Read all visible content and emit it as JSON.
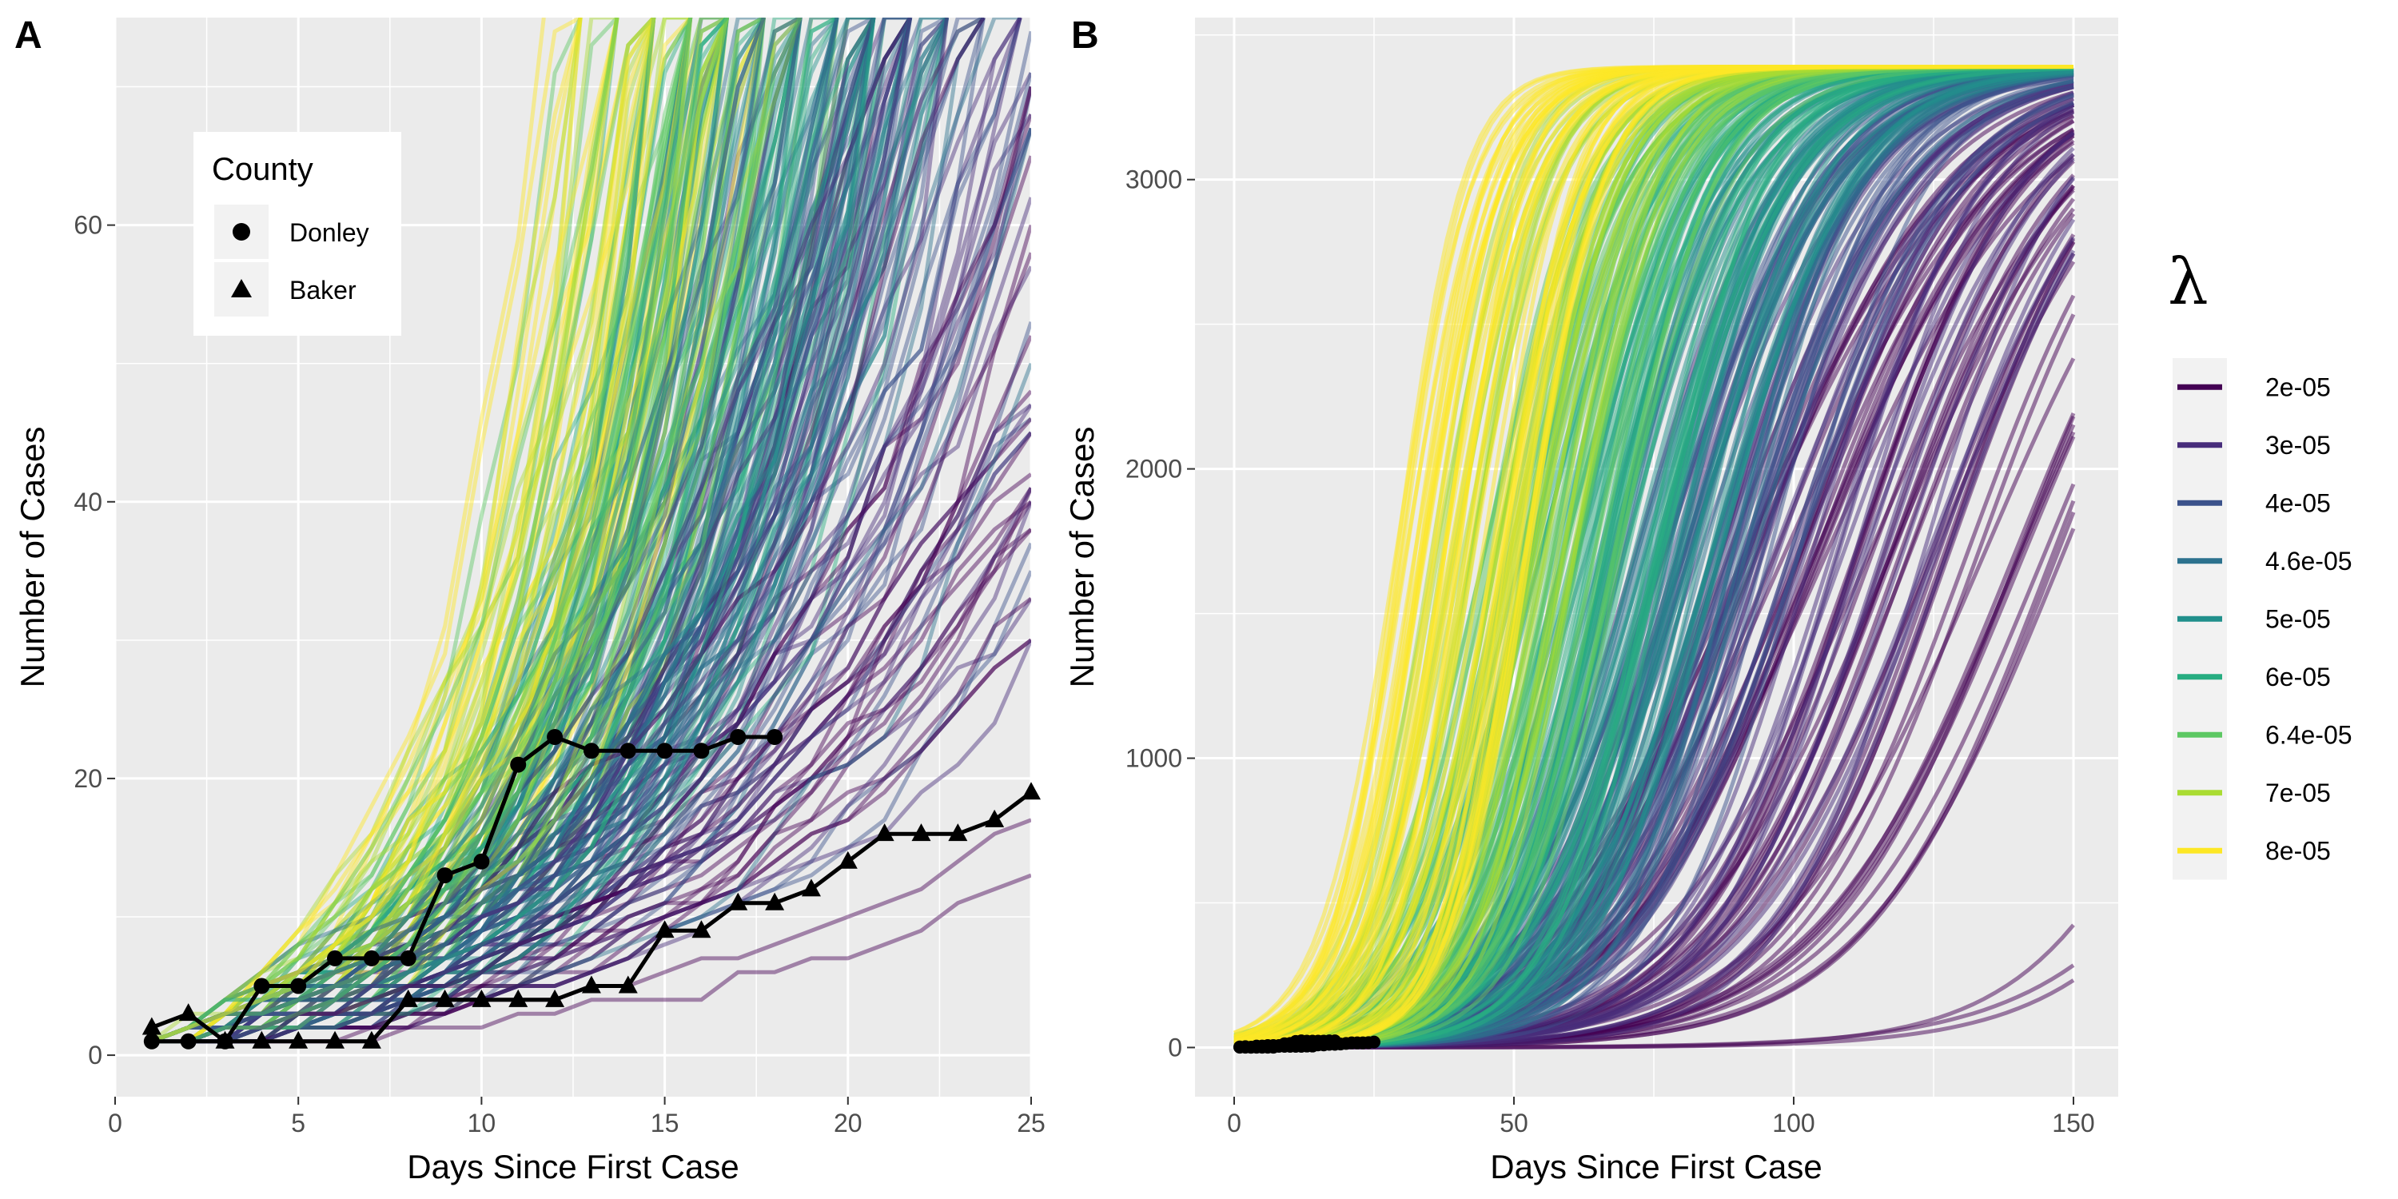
{
  "chart_data": [
    {
      "panel": "A",
      "type": "line",
      "xlabel": "Days Since First Case",
      "ylabel": "Number of Cases",
      "xlim": [
        0,
        25
      ],
      "ylim": [
        -3,
        75
      ],
      "xticks": [
        0,
        5,
        10,
        15,
        20,
        25
      ],
      "yticks": [
        0,
        20,
        40,
        60
      ],
      "grid": true,
      "legend": {
        "title": "County",
        "position": "top-left",
        "entries": [
          {
            "label": "Donley",
            "marker": "circle"
          },
          {
            "label": "Baker",
            "marker": "triangle"
          }
        ]
      },
      "series": [
        {
          "name": "Donley",
          "marker": "circle",
          "x": [
            1,
            2,
            3,
            4,
            5,
            6,
            7,
            8,
            9,
            10,
            11,
            12,
            13,
            14,
            15,
            16,
            17,
            18
          ],
          "y": [
            1,
            1,
            1,
            5,
            5,
            7,
            7,
            7,
            13,
            14,
            21,
            23,
            22,
            22,
            22,
            22,
            23,
            23
          ]
        },
        {
          "name": "Baker",
          "marker": "triangle",
          "x": [
            1,
            2,
            3,
            4,
            5,
            6,
            7,
            8,
            9,
            10,
            11,
            12,
            13,
            14,
            15,
            16,
            17,
            18,
            19,
            20,
            21,
            22,
            23,
            24,
            25
          ],
          "y": [
            2,
            3,
            1,
            1,
            1,
            1,
            1,
            4,
            4,
            4,
            4,
            4,
            5,
            5,
            9,
            9,
            11,
            11,
            12,
            14,
            16,
            16,
            16,
            17,
            19
          ]
        }
      ]
    },
    {
      "panel": "B",
      "type": "line",
      "xlabel": "Days Since First Case",
      "ylabel": "Number of Cases",
      "xlim": [
        -7,
        158
      ],
      "ylim": [
        -170,
        3560
      ],
      "xticks": [
        0,
        50,
        100,
        150
      ],
      "yticks": [
        0,
        1000,
        2000,
        3000
      ],
      "grid": true,
      "legend": {
        "title": "λ",
        "position": "right",
        "entries": [
          {
            "label": "2e-05",
            "color": "#440154"
          },
          {
            "label": "3e-05",
            "color": "#472D7B"
          },
          {
            "label": "4e-05",
            "color": "#3B528B"
          },
          {
            "label": "4.6e-05",
            "color": "#2C728E"
          },
          {
            "label": "5e-05",
            "color": "#21908C"
          },
          {
            "label": "6e-05",
            "color": "#27AD81"
          },
          {
            "label": "6.4e-05",
            "color": "#5DC863"
          },
          {
            "label": "7e-05",
            "color": "#AADC32"
          },
          {
            "label": "8e-05",
            "color": "#FDE725"
          }
        ]
      },
      "plateau": 3390
    }
  ]
}
